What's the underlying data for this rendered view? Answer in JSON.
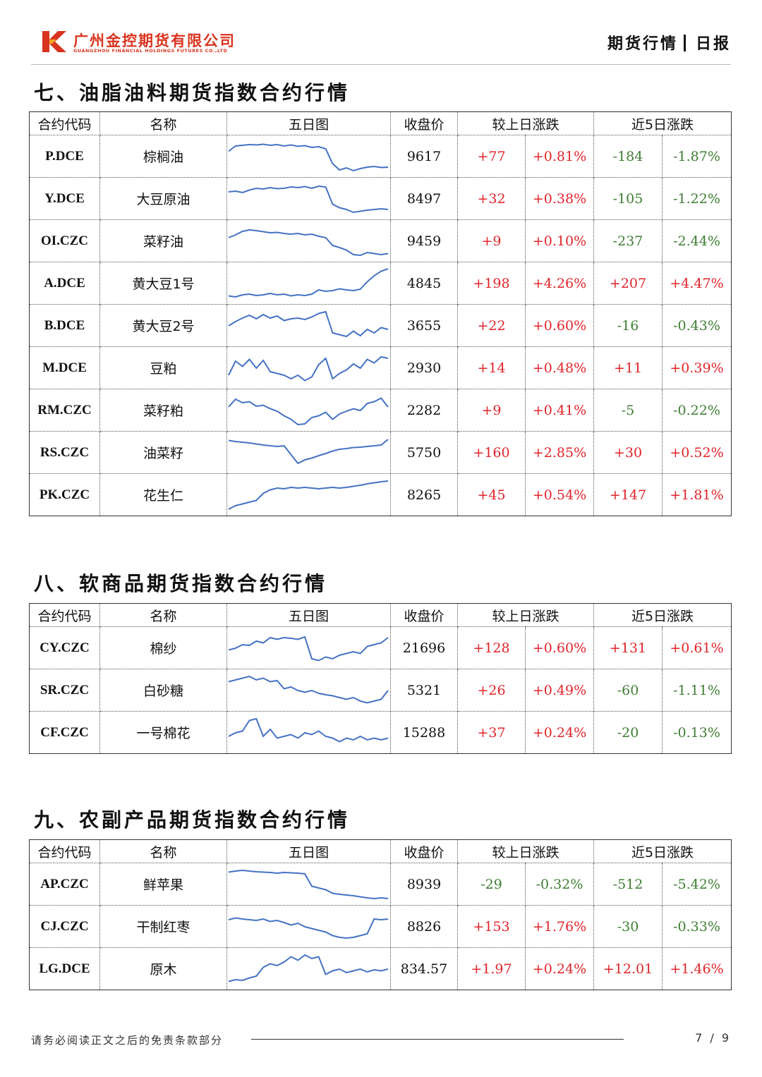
{
  "header": {
    "company_cn": "广州金控期货有限公司",
    "company_en": "GUANGZHOU FINANCIAL HOLDINGS FUTURES CO.,LTD",
    "doc_type": "期货行情",
    "doc_kind": "日报",
    "brand_color": "#d9341f"
  },
  "columns": {
    "code": "合约代码",
    "name": "名称",
    "chart": "五日图",
    "close": "收盘价",
    "daily": "较上日涨跌",
    "five_day": "近5日涨跌"
  },
  "colors": {
    "up": "#e0242a",
    "down": "#3e7d33",
    "sparkline": "#4472c4"
  },
  "sections": [
    {
      "title": "七、油脂油料期货指数合约行情",
      "rows": [
        {
          "code": "P.DCE",
          "name": "棕榈油",
          "close": "9617",
          "chg": "+77",
          "chg_pct": "+0.81%",
          "chg5": "-184",
          "chg5_pct": "-1.87%",
          "spark": [
            0.65,
            0.8,
            0.82,
            0.84,
            0.83,
            0.85,
            0.82,
            0.84,
            0.8,
            0.83,
            0.79,
            0.81,
            0.76,
            0.78,
            0.72,
            0.3,
            0.12,
            0.18,
            0.1,
            0.16,
            0.2,
            0.22,
            0.19,
            0.2
          ]
        },
        {
          "code": "Y.DCE",
          "name": "大豆原油",
          "close": "8497",
          "chg": "+32",
          "chg_pct": "+0.38%",
          "chg5": "-105",
          "chg5_pct": "-1.22%",
          "spark": [
            0.7,
            0.72,
            0.68,
            0.75,
            0.8,
            0.78,
            0.82,
            0.79,
            0.8,
            0.84,
            0.82,
            0.85,
            0.8,
            0.86,
            0.84,
            0.35,
            0.25,
            0.2,
            0.12,
            0.15,
            0.18,
            0.2,
            0.22,
            0.2
          ]
        },
        {
          "code": "OI.CZC",
          "name": "菜籽油",
          "close": "9459",
          "chg": "+9",
          "chg_pct": "+0.10%",
          "chg5": "-237",
          "chg5_pct": "-2.44%",
          "spark": [
            0.6,
            0.68,
            0.78,
            0.82,
            0.8,
            0.77,
            0.74,
            0.75,
            0.72,
            0.7,
            0.72,
            0.68,
            0.7,
            0.64,
            0.6,
            0.38,
            0.32,
            0.25,
            0.12,
            0.1,
            0.18,
            0.15,
            0.12,
            0.15
          ]
        },
        {
          "code": "A.DCE",
          "name": "黄大豆1号",
          "close": "4845",
          "chg": "+198",
          "chg_pct": "+4.26%",
          "chg5": "+207",
          "chg5_pct": "+4.47%",
          "spark": [
            0.15,
            0.12,
            0.18,
            0.2,
            0.16,
            0.18,
            0.22,
            0.18,
            0.2,
            0.15,
            0.18,
            0.16,
            0.2,
            0.32,
            0.28,
            0.3,
            0.35,
            0.32,
            0.3,
            0.34,
            0.55,
            0.72,
            0.85,
            0.92
          ]
        },
        {
          "code": "B.DCE",
          "name": "黄大豆2号",
          "close": "3655",
          "chg": "+22",
          "chg_pct": "+0.60%",
          "chg5": "-16",
          "chg5_pct": "-0.43%",
          "spark": [
            0.5,
            0.62,
            0.72,
            0.8,
            0.7,
            0.82,
            0.72,
            0.78,
            0.65,
            0.7,
            0.72,
            0.68,
            0.75,
            0.85,
            0.9,
            0.3,
            0.25,
            0.2,
            0.35,
            0.22,
            0.4,
            0.3,
            0.45,
            0.4
          ]
        },
        {
          "code": "M.DCE",
          "name": "豆粕",
          "close": "2930",
          "chg": "+14",
          "chg_pct": "+0.48%",
          "chg5": "+11",
          "chg5_pct": "+0.39%",
          "spark": [
            0.3,
            0.7,
            0.55,
            0.75,
            0.5,
            0.72,
            0.4,
            0.35,
            0.3,
            0.2,
            0.3,
            0.15,
            0.25,
            0.6,
            0.78,
            0.2,
            0.35,
            0.45,
            0.62,
            0.5,
            0.75,
            0.65,
            0.82,
            0.78
          ]
        },
        {
          "code": "RM.CZC",
          "name": "菜籽粕",
          "close": "2282",
          "chg": "+9",
          "chg_pct": "+0.41%",
          "chg5": "-5",
          "chg5_pct": "-0.22%",
          "spark": [
            0.6,
            0.82,
            0.72,
            0.75,
            0.62,
            0.65,
            0.55,
            0.48,
            0.35,
            0.25,
            0.1,
            0.12,
            0.3,
            0.35,
            0.45,
            0.25,
            0.4,
            0.48,
            0.55,
            0.5,
            0.7,
            0.75,
            0.85,
            0.6
          ]
        },
        {
          "code": "RS.CZC",
          "name": "油菜籽",
          "close": "5750",
          "chg": "+160",
          "chg_pct": "+2.85%",
          "chg5": "+30",
          "chg5_pct": "+0.52%",
          "spark": [
            0.85,
            0.82,
            0.8,
            0.78,
            0.75,
            0.72,
            0.7,
            0.68,
            0.7,
            0.45,
            0.2,
            0.3,
            0.35,
            0.42,
            0.48,
            0.55,
            0.6,
            0.62,
            0.65,
            0.66,
            0.68,
            0.7,
            0.72,
            0.88
          ]
        },
        {
          "code": "PK.CZC",
          "name": "花生仁",
          "close": "8265",
          "chg": "+45",
          "chg_pct": "+0.54%",
          "chg5": "+147",
          "chg5_pct": "+1.81%",
          "spark": [
            0.1,
            0.2,
            0.25,
            0.3,
            0.35,
            0.55,
            0.65,
            0.7,
            0.68,
            0.72,
            0.7,
            0.72,
            0.7,
            0.68,
            0.7,
            0.72,
            0.7,
            0.72,
            0.75,
            0.78,
            0.82,
            0.85,
            0.88,
            0.9
          ]
        }
      ]
    },
    {
      "title": "八、软商品期货指数合约行情",
      "rows": [
        {
          "code": "CY.CZC",
          "name": "棉纱",
          "close": "21696",
          "chg": "+128",
          "chg_pct": "+0.60%",
          "chg5": "+131",
          "chg5_pct": "+0.61%",
          "spark": [
            0.45,
            0.5,
            0.6,
            0.58,
            0.7,
            0.65,
            0.8,
            0.75,
            0.8,
            0.78,
            0.75,
            0.82,
            0.2,
            0.15,
            0.25,
            0.2,
            0.3,
            0.35,
            0.4,
            0.35,
            0.55,
            0.6,
            0.65,
            0.8
          ]
        },
        {
          "code": "SR.CZC",
          "name": "白砂糖",
          "close": "5321",
          "chg": "+26",
          "chg_pct": "+0.49%",
          "chg5": "-60",
          "chg5_pct": "-1.11%",
          "spark": [
            0.75,
            0.8,
            0.85,
            0.9,
            0.8,
            0.85,
            0.75,
            0.78,
            0.55,
            0.6,
            0.5,
            0.45,
            0.5,
            0.42,
            0.38,
            0.35,
            0.3,
            0.25,
            0.3,
            0.2,
            0.15,
            0.2,
            0.25,
            0.5
          ]
        },
        {
          "code": "CF.CZC",
          "name": "一号棉花",
          "close": "15288",
          "chg": "+37",
          "chg_pct": "+0.24%",
          "chg5": "-20",
          "chg5_pct": "-0.13%",
          "spark": [
            0.4,
            0.5,
            0.55,
            0.85,
            0.9,
            0.4,
            0.6,
            0.35,
            0.4,
            0.45,
            0.35,
            0.5,
            0.45,
            0.55,
            0.4,
            0.35,
            0.25,
            0.35,
            0.3,
            0.4,
            0.3,
            0.35,
            0.3,
            0.35
          ]
        }
      ]
    },
    {
      "title": "九、农副产品期货指数合约行情",
      "rows": [
        {
          "code": "AP.CZC",
          "name": "鲜苹果",
          "close": "8939",
          "chg": "-29",
          "chg_pct": "-0.32%",
          "chg5": "-512",
          "chg5_pct": "-5.42%",
          "spark": [
            0.85,
            0.88,
            0.9,
            0.88,
            0.86,
            0.85,
            0.84,
            0.82,
            0.84,
            0.83,
            0.82,
            0.8,
            0.45,
            0.4,
            0.35,
            0.25,
            0.22,
            0.2,
            0.18,
            0.15,
            0.12,
            0.1,
            0.12,
            0.1
          ]
        },
        {
          "code": "CJ.CZC",
          "name": "干制红枣",
          "close": "8826",
          "chg": "+153",
          "chg_pct": "+1.76%",
          "chg5": "-30",
          "chg5_pct": "-0.33%",
          "spark": [
            0.7,
            0.75,
            0.72,
            0.7,
            0.68,
            0.72,
            0.65,
            0.68,
            0.62,
            0.55,
            0.6,
            0.5,
            0.45,
            0.4,
            0.35,
            0.25,
            0.2,
            0.18,
            0.2,
            0.25,
            0.3,
            0.72,
            0.7,
            0.72
          ]
        },
        {
          "code": "LG.DCE",
          "name": "原木",
          "close": "834.57",
          "chg": "+1.97",
          "chg_pct": "+0.24%",
          "chg5": "+12.01",
          "chg5_pct": "+1.46%",
          "spark": [
            0.15,
            0.2,
            0.18,
            0.25,
            0.3,
            0.55,
            0.65,
            0.6,
            0.7,
            0.85,
            0.75,
            0.9,
            0.8,
            0.85,
            0.35,
            0.45,
            0.5,
            0.4,
            0.45,
            0.5,
            0.42,
            0.48,
            0.45,
            0.5
          ]
        }
      ]
    }
  ],
  "footer": {
    "disclaimer": "请务必阅读正文之后的免责条款部分",
    "page": "7 / 9"
  }
}
